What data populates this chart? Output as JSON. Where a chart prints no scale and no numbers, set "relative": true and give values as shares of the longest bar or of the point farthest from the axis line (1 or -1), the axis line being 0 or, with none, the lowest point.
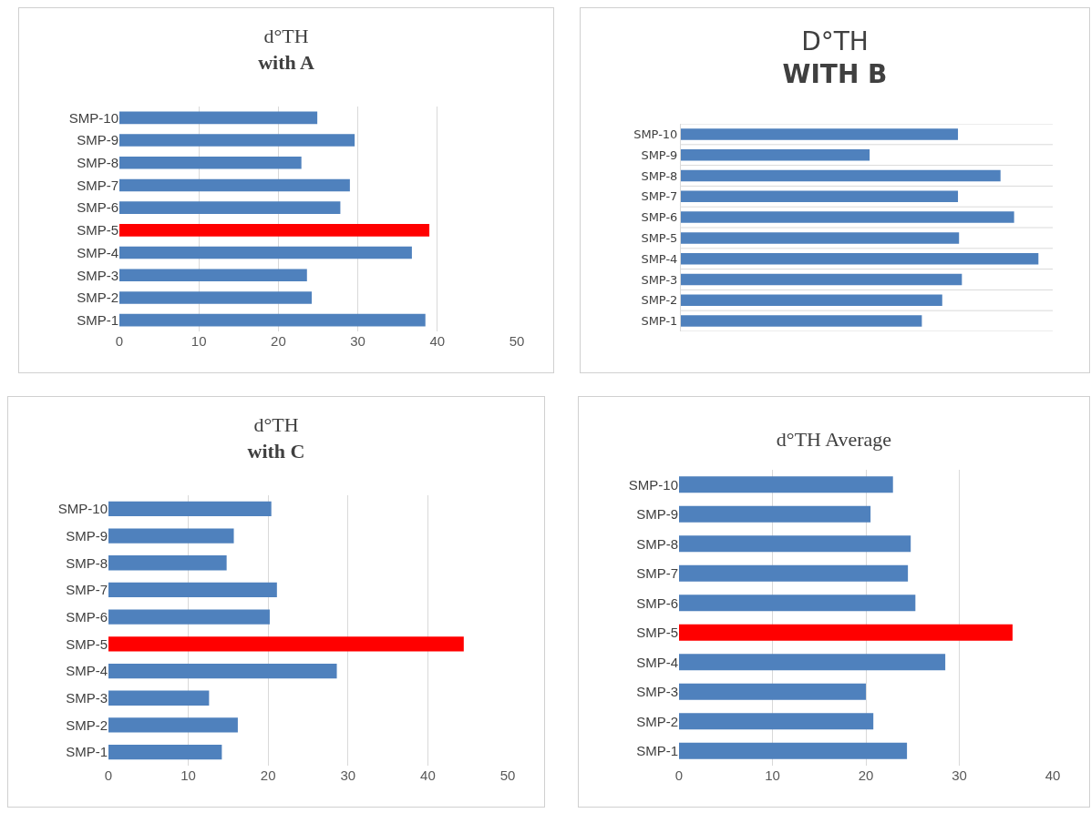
{
  "chart_data": [
    {
      "type": "bar",
      "title": "d°TH",
      "subtitle": "with A",
      "orientation": "horizontal",
      "categories": [
        "SMP-10",
        "SMP-9",
        "SMP-8",
        "SMP-7",
        "SMP-6",
        "SMP-5",
        "SMP-4",
        "SMP-3",
        "SMP-2",
        "SMP-1"
      ],
      "values": [
        24.9,
        29.6,
        22.9,
        29.0,
        27.8,
        39.0,
        36.8,
        23.6,
        24.2,
        38.5
      ],
      "colors": [
        "#4f81bd",
        "#4f81bd",
        "#4f81bd",
        "#4f81bd",
        "#4f81bd",
        "#ff0000",
        "#4f81bd",
        "#4f81bd",
        "#4f81bd",
        "#4f81bd"
      ],
      "xlim": [
        0,
        50
      ],
      "xticks": [
        0,
        10,
        20,
        30,
        40,
        50
      ],
      "grid": "x"
    },
    {
      "type": "bar",
      "title": "D°TH",
      "subtitle": "WITH B",
      "orientation": "horizontal",
      "relative": true,
      "categories": [
        "SMP-10",
        "SMP-9",
        "SMP-8",
        "SMP-7",
        "SMP-6",
        "SMP-5",
        "SMP-4",
        "SMP-3",
        "SMP-2",
        "SMP-1"
      ],
      "values": [
        0.775,
        0.528,
        0.894,
        0.775,
        0.932,
        0.778,
        1,
        0.786,
        0.731,
        0.674
      ],
      "colors": [
        "#4f81bd",
        "#4f81bd",
        "#4f81bd",
        "#4f81bd",
        "#4f81bd",
        "#4f81bd",
        "#4f81bd",
        "#4f81bd",
        "#4f81bd",
        "#4f81bd"
      ],
      "grid": "y"
    },
    {
      "type": "bar",
      "title": "d°TH",
      "subtitle": "with C",
      "orientation": "horizontal",
      "categories": [
        "SMP-10",
        "SMP-9",
        "SMP-8",
        "SMP-7",
        "SMP-6",
        "SMP-5",
        "SMP-4",
        "SMP-3",
        "SMP-2",
        "SMP-1"
      ],
      "values": [
        20.4,
        15.7,
        14.8,
        21.1,
        20.2,
        44.5,
        28.6,
        12.6,
        16.2,
        14.2
      ],
      "colors": [
        "#4f81bd",
        "#4f81bd",
        "#4f81bd",
        "#4f81bd",
        "#4f81bd",
        "#ff0000",
        "#4f81bd",
        "#4f81bd",
        "#4f81bd",
        "#4f81bd"
      ],
      "xlim": [
        0,
        50
      ],
      "xticks": [
        0,
        10,
        20,
        30,
        40,
        50
      ],
      "grid": "x"
    },
    {
      "type": "bar",
      "title": "d°TH Average",
      "orientation": "horizontal",
      "categories": [
        "SMP-10",
        "SMP-9",
        "SMP-8",
        "SMP-7",
        "SMP-6",
        "SMP-5",
        "SMP-4",
        "SMP-3",
        "SMP-2",
        "SMP-1"
      ],
      "values": [
        22.9,
        20.5,
        24.8,
        24.5,
        25.3,
        35.7,
        28.5,
        20.0,
        20.8,
        24.4
      ],
      "colors": [
        "#4f81bd",
        "#4f81bd",
        "#4f81bd",
        "#4f81bd",
        "#4f81bd",
        "#ff0000",
        "#4f81bd",
        "#4f81bd",
        "#4f81bd",
        "#4f81bd"
      ],
      "xlim": [
        0,
        40
      ],
      "xticks": [
        0,
        10,
        20,
        30,
        40
      ],
      "grid": "x"
    }
  ]
}
